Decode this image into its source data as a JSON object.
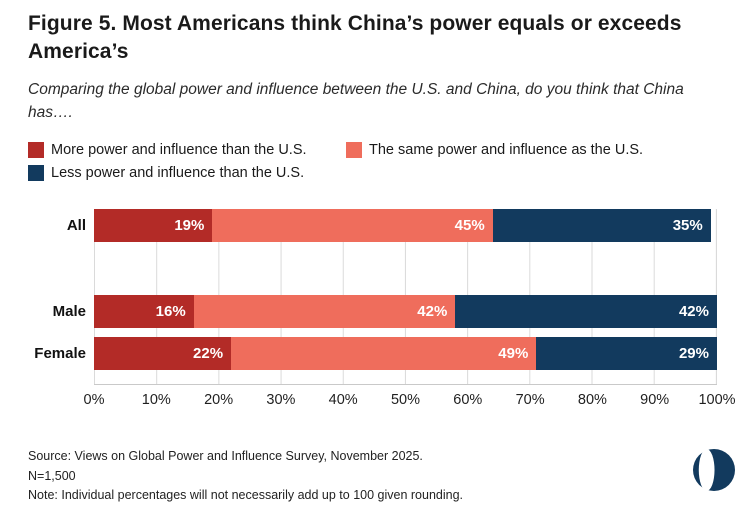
{
  "chart_data": {
    "type": "bar",
    "orientation": "horizontal",
    "stacked": true,
    "title": "Figure 5. Most Americans think China’s power equals or exceeds America’s",
    "subtitle": "Comparing the global power and influence between the U.S. and China, do you think that China has….",
    "categories": [
      "All",
      "Male",
      "Female"
    ],
    "series": [
      {
        "name": "More power and influence than the U.S.",
        "color": "#b32b27",
        "values": [
          19,
          16,
          22
        ]
      },
      {
        "name": "The same power and influence as the U.S.",
        "color": "#ef6d5c",
        "values": [
          45,
          42,
          49
        ]
      },
      {
        "name": "Less power and influence than the U.S.",
        "color": "#123a5e",
        "values": [
          35,
          42,
          29
        ]
      }
    ],
    "x_ticks": [
      "0%",
      "10%",
      "20%",
      "30%",
      "40%",
      "50%",
      "60%",
      "70%",
      "80%",
      "90%",
      "100%"
    ],
    "xlim": [
      0,
      100
    ],
    "grid": true,
    "legend_position": "top",
    "value_label_suffix": "%"
  },
  "footer": {
    "source": "Source: Views on Global Power and Influence Survey, November 2025.",
    "sample": "N=1,500",
    "note": "Note: Individual percentages will not necessarily add up to 100 given rounding."
  },
  "logo": {
    "name": "pie-logo",
    "color": "#123a5e"
  }
}
